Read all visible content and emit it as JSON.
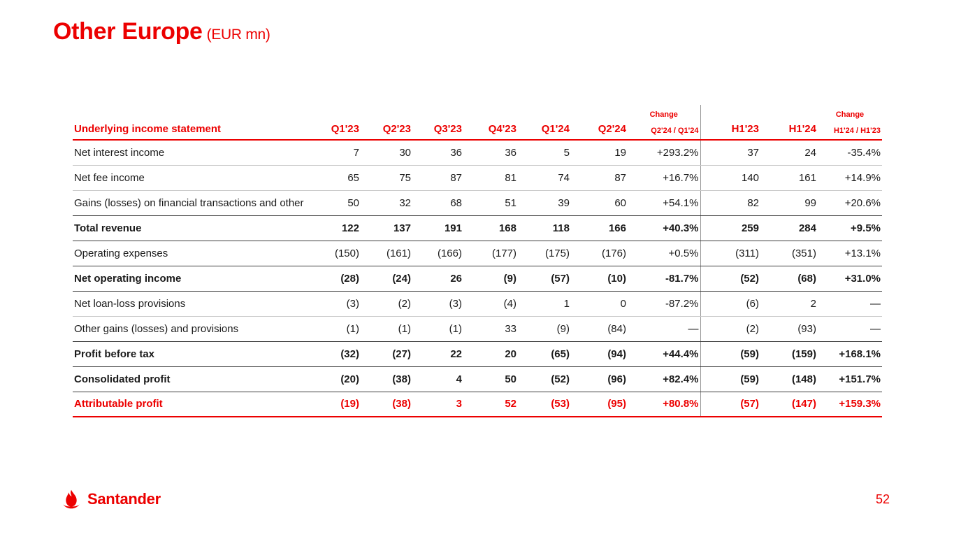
{
  "slide": {
    "title": "Other Europe",
    "subtitle": "(EUR mn)",
    "logo_text": "Santander",
    "page_number": "52"
  },
  "colors": {
    "brand_red": "#EC0000"
  },
  "table": {
    "header": {
      "label": "Underlying income statement",
      "change_label": "Change",
      "columns": [
        "Q1'23",
        "Q2'23",
        "Q3'23",
        "Q4'23",
        "Q1'24",
        "Q2'24",
        "Q2'24 / Q1'24",
        "H1'23",
        "H1'24",
        "H1'24 / H1'23"
      ]
    },
    "rows": [
      {
        "label": "Net interest income",
        "bold": false,
        "red": false,
        "divider": "light",
        "values": [
          "7",
          "30",
          "36",
          "36",
          "5",
          "19",
          "+293.2%",
          "37",
          "24",
          "-35.4%"
        ]
      },
      {
        "label": "Net fee income",
        "bold": false,
        "red": false,
        "divider": "light",
        "values": [
          "65",
          "75",
          "87",
          "81",
          "74",
          "87",
          "+16.7%",
          "140",
          "161",
          "+14.9%"
        ]
      },
      {
        "label": "Gains (losses) on financial transactions and other",
        "bold": false,
        "red": false,
        "divider": "dark",
        "values": [
          "50",
          "32",
          "68",
          "51",
          "39",
          "60",
          "+54.1%",
          "82",
          "99",
          "+20.6%"
        ]
      },
      {
        "label": "Total revenue",
        "bold": true,
        "red": false,
        "divider": "dark",
        "values": [
          "122",
          "137",
          "191",
          "168",
          "118",
          "166",
          "+40.3%",
          "259",
          "284",
          "+9.5%"
        ]
      },
      {
        "label": "Operating expenses",
        "bold": false,
        "red": false,
        "divider": "dark",
        "values": [
          "(150)",
          "(161)",
          "(166)",
          "(177)",
          "(175)",
          "(176)",
          "+0.5%",
          "(311)",
          "(351)",
          "+13.1%"
        ]
      },
      {
        "label": "Net operating income",
        "bold": true,
        "red": false,
        "divider": "dark",
        "values": [
          "(28)",
          "(24)",
          "26",
          "(9)",
          "(57)",
          "(10)",
          "-81.7%",
          "(52)",
          "(68)",
          "+31.0%"
        ]
      },
      {
        "label": "Net loan-loss provisions",
        "bold": false,
        "red": false,
        "divider": "light",
        "values": [
          "(3)",
          "(2)",
          "(3)",
          "(4)",
          "1",
          "0",
          "-87.2%",
          "(6)",
          "2",
          "—"
        ]
      },
      {
        "label": "Other gains (losses) and provisions",
        "bold": false,
        "red": false,
        "divider": "dark",
        "values": [
          "(1)",
          "(1)",
          "(1)",
          "33",
          "(9)",
          "(84)",
          "—",
          "(2)",
          "(93)",
          "—"
        ]
      },
      {
        "label": "Profit before tax",
        "bold": true,
        "red": false,
        "divider": "dark",
        "values": [
          "(32)",
          "(27)",
          "22",
          "20",
          "(65)",
          "(94)",
          "+44.4%",
          "(59)",
          "(159)",
          "+168.1%"
        ]
      },
      {
        "label": "Consolidated profit",
        "bold": true,
        "red": false,
        "divider": "dark",
        "values": [
          "(20)",
          "(38)",
          "4",
          "50",
          "(52)",
          "(96)",
          "+82.4%",
          "(59)",
          "(148)",
          "+151.7%"
        ]
      },
      {
        "label": "Attributable profit",
        "bold": true,
        "red": true,
        "divider": "red",
        "values": [
          "(19)",
          "(38)",
          "3",
          "52",
          "(53)",
          "(95)",
          "+80.8%",
          "(57)",
          "(147)",
          "+159.3%"
        ]
      }
    ]
  }
}
